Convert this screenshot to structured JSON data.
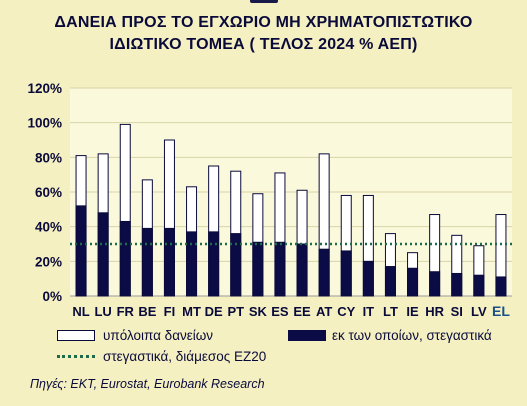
{
  "title_line1": "ΔΑΝΕΙΑ ΠΡΟΣ ΤΟ ΕΓΧΩΡΙΟ ΜΗ ΧΡΗΜΑΤΟΠΙΣΤΩΤΙΚΟ",
  "title_line2": "ΙΔΙΩΤΙΚΟ ΤΟΜΕΑ ( ΤΕΛΟΣ 2024 % ΑΕΠ)",
  "source": "Πηγές: ΕΚΤ, Eurostat, Eurobank Research",
  "colors": {
    "background": "#f4f0c2",
    "plot_background": "#fbf9dc",
    "dark_navy": "#0a0a3a",
    "bar_outline": "#0a0a3a",
    "other_loans_fill": "#ffffff",
    "housing_fill": "#0b0c45",
    "dotted_line": "#1d6b4a",
    "highlight_label": "#1a4f8a"
  },
  "chart_data": {
    "type": "bar",
    "stacked": true,
    "categories": [
      "NL",
      "LU",
      "FR",
      "BE",
      "FI",
      "MT",
      "DE",
      "PT",
      "SK",
      "ES",
      "EE",
      "AT",
      "CY",
      "IT",
      "LT",
      "IE",
      "HR",
      "SI",
      "LV",
      "EL"
    ],
    "highlight_category": "EL",
    "series": [
      {
        "name": "εκ των οποίων, στεγαστικά",
        "values": [
          52,
          48,
          43,
          39,
          39,
          37,
          37,
          36,
          31,
          31,
          30,
          27,
          26,
          20,
          17,
          16,
          14,
          13,
          12,
          11
        ]
      },
      {
        "name": "υπόλοιπα δανείων",
        "values": [
          29,
          34,
          56,
          28,
          51,
          26,
          38,
          36,
          28,
          40,
          31,
          55,
          32,
          38,
          19,
          9,
          33,
          22,
          17,
          36
        ]
      }
    ],
    "reference_line": {
      "name": "στεγαστικά, διάμεσος ΕΖ20",
      "value": 30
    },
    "yticks": [
      "0%",
      "20%",
      "40%",
      "60%",
      "80%",
      "100%",
      "120%"
    ],
    "ylim": [
      0,
      120
    ],
    "grid": true,
    "legend": "bottom"
  }
}
